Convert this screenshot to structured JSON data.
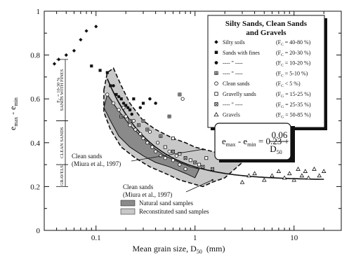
{
  "chart_data": {
    "type": "scatter",
    "x_scale": "log",
    "xlim": [
      0.03,
      30
    ],
    "ylim": [
      0,
      1
    ],
    "grid": false,
    "x_ticks": [
      {
        "value": 0.1,
        "label": "0.1"
      },
      {
        "value": 1,
        "label": "1"
      },
      {
        "value": 10,
        "label": "10"
      }
    ],
    "y_ticks": [
      {
        "value": 0,
        "label": "0"
      },
      {
        "value": 0.2,
        "label": "0.2"
      },
      {
        "value": 0.4,
        "label": "0.4"
      },
      {
        "value": 0.6,
        "label": "0.6"
      },
      {
        "value": 0.8,
        "label": "0.8"
      },
      {
        "value": 1,
        "label": "1"
      }
    ],
    "xlabel": "Mean grain size, D",
    "xlabel_sub": "50",
    "xlabel_unit": "(mm)",
    "ylabel": "e",
    "ylabel_sub1": "max",
    "ylabel_mid": " - e",
    "ylabel_sub2": "min",
    "legend_placement": "top-right",
    "legend_title": [
      "Silty Sands, Clean Sands",
      "and Gravels"
    ],
    "series": [
      {
        "name": "Silty soils",
        "param": "(F",
        "param_sub": "C",
        "range": " = 40-80 %)",
        "marker": "diamond",
        "points": [
          [
            0.038,
            0.76
          ],
          [
            0.042,
            0.78
          ],
          [
            0.05,
            0.8
          ],
          [
            0.06,
            0.82
          ],
          [
            0.07,
            0.87
          ],
          [
            0.08,
            0.91
          ],
          [
            0.1,
            0.93
          ]
        ]
      },
      {
        "name": "Sands with fines",
        "param": "(F",
        "param_sub": "C",
        "range": " = 20-30 %)",
        "marker": "square",
        "points": [
          [
            0.09,
            0.75
          ],
          [
            0.11,
            0.73
          ],
          [
            0.13,
            0.72
          ],
          [
            0.14,
            0.66
          ],
          [
            0.16,
            0.62
          ],
          [
            0.18,
            0.6
          ],
          [
            0.2,
            0.57
          ],
          [
            0.22,
            0.55
          ],
          [
            0.24,
            0.6
          ],
          [
            0.3,
            0.58
          ]
        ]
      },
      {
        "name": "---- \" ----",
        "param": "(F",
        "param_sub": "C",
        "range": " = 10-20 %)",
        "marker": "circle",
        "points": [
          [
            0.15,
            0.66
          ],
          [
            0.17,
            0.61
          ],
          [
            0.19,
            0.58
          ],
          [
            0.21,
            0.56
          ],
          [
            0.23,
            0.53
          ],
          [
            0.28,
            0.56
          ],
          [
            0.35,
            0.6
          ],
          [
            0.4,
            0.58
          ]
        ]
      },
      {
        "name": "---- \" ----",
        "param": "(F",
        "param_sub": "C",
        "range": " = 5-10 %)",
        "marker": "square-plus",
        "points": [
          [
            0.18,
            0.52
          ],
          [
            0.22,
            0.5
          ],
          [
            0.27,
            0.48
          ],
          [
            0.33,
            0.46
          ],
          [
            0.45,
            0.43
          ],
          [
            0.55,
            0.52
          ],
          [
            0.7,
            0.62
          ],
          [
            0.3,
            0.5
          ]
        ]
      },
      {
        "name": "Clean sands",
        "param": "(F",
        "param_sub": "C",
        "range": " < 5 %)",
        "marker": "circle-open",
        "points": [
          [
            0.13,
            0.62
          ],
          [
            0.15,
            0.58
          ],
          [
            0.17,
            0.55
          ],
          [
            0.2,
            0.52
          ],
          [
            0.22,
            0.48
          ],
          [
            0.25,
            0.46
          ],
          [
            0.28,
            0.44
          ],
          [
            0.3,
            0.42
          ],
          [
            0.33,
            0.4
          ],
          [
            0.37,
            0.38
          ],
          [
            0.4,
            0.36
          ],
          [
            0.45,
            0.34
          ],
          [
            0.5,
            0.33
          ],
          [
            0.6,
            0.32
          ],
          [
            0.7,
            0.3
          ],
          [
            0.8,
            0.28
          ],
          [
            0.35,
            0.45
          ],
          [
            0.24,
            0.5
          ],
          [
            0.19,
            0.56
          ],
          [
            0.42,
            0.4
          ],
          [
            0.55,
            0.36
          ],
          [
            0.65,
            0.34
          ],
          [
            0.75,
            0.6
          ]
        ]
      },
      {
        "name": "Gravelly sands",
        "param": "(F",
        "param_sub": "G",
        "range": " = 15-25 %)",
        "marker": "square-open",
        "points": [
          [
            0.5,
            0.38
          ],
          [
            0.7,
            0.35
          ],
          [
            0.9,
            0.32
          ],
          [
            1.1,
            0.3
          ],
          [
            1.3,
            0.33
          ],
          [
            0.6,
            0.42
          ]
        ]
      },
      {
        "name": "---- \" ----",
        "param": "(F",
        "param_sub": "G",
        "range": " = 25-35 %)",
        "marker": "square-x",
        "points": [
          [
            0.6,
            0.36
          ],
          [
            0.8,
            0.33
          ],
          [
            1.0,
            0.31
          ],
          [
            1.2,
            0.29
          ],
          [
            1.5,
            0.28
          ]
        ]
      },
      {
        "name": "Gravels",
        "param": "(F",
        "param_sub": "G",
        "range": " = 50-85 %)",
        "marker": "triangle-open",
        "points": [
          [
            3,
            0.22
          ],
          [
            3.5,
            0.25
          ],
          [
            4,
            0.26
          ],
          [
            5,
            0.23
          ],
          [
            6,
            0.25
          ],
          [
            7,
            0.27
          ],
          [
            8,
            0.24
          ],
          [
            9,
            0.26
          ],
          [
            10,
            0.23
          ],
          [
            11,
            0.28
          ],
          [
            12,
            0.25
          ],
          [
            13,
            0.27
          ],
          [
            14,
            0.24
          ],
          [
            16,
            0.28
          ],
          [
            18,
            0.25
          ],
          [
            20,
            0.27
          ]
        ]
      }
    ],
    "fit_curve": {
      "lhs": "e",
      "lhs_sub1": "max",
      "lhs_mid": " - e",
      "lhs_sub2": "min",
      "rhs": " = 0.23 + ",
      "numerator": "0.06",
      "denominator": "D",
      "denominator_sub": "50",
      "a": 0.23,
      "b": 0.06,
      "x_range": [
        0.13,
        20
      ]
    },
    "regions": [
      {
        "name": "Natural sand samples",
        "color": "#8a8a8a",
        "boundary": [
          [
            0.13,
            0.62
          ],
          [
            0.16,
            0.56
          ],
          [
            0.22,
            0.48
          ],
          [
            0.3,
            0.42
          ],
          [
            0.4,
            0.37
          ],
          [
            0.5,
            0.34
          ],
          [
            0.7,
            0.31
          ],
          [
            0.9,
            0.29
          ],
          [
            1.1,
            0.28
          ],
          [
            1.0,
            0.24
          ],
          [
            0.8,
            0.26
          ],
          [
            0.55,
            0.29
          ],
          [
            0.4,
            0.31
          ],
          [
            0.3,
            0.34
          ],
          [
            0.22,
            0.38
          ],
          [
            0.17,
            0.43
          ],
          [
            0.14,
            0.5
          ],
          [
            0.12,
            0.56
          ]
        ]
      },
      {
        "name": "Reconstituted sand samples",
        "color": "#c8c8c8",
        "boundary": [
          [
            0.12,
            0.64
          ],
          [
            0.13,
            0.72
          ],
          [
            0.15,
            0.74
          ],
          [
            0.18,
            0.66
          ],
          [
            0.22,
            0.58
          ],
          [
            0.3,
            0.5
          ],
          [
            0.4,
            0.46
          ],
          [
            0.6,
            0.42
          ],
          [
            0.8,
            0.4
          ],
          [
            1.0,
            0.38
          ],
          [
            1.5,
            0.36
          ],
          [
            2.5,
            0.33
          ],
          [
            3.0,
            0.31
          ],
          [
            2.0,
            0.24
          ],
          [
            1.5,
            0.22
          ],
          [
            1.2,
            0.2
          ],
          [
            1.0,
            0.21
          ],
          [
            0.7,
            0.23
          ],
          [
            0.5,
            0.26
          ],
          [
            0.35,
            0.29
          ],
          [
            0.25,
            0.33
          ],
          [
            0.18,
            0.38
          ],
          [
            0.14,
            0.46
          ],
          [
            0.12,
            0.54
          ]
        ]
      }
    ],
    "annotations": [
      {
        "lines": [
          "Clean sands",
          "(Miura et al., 1997)"
        ],
        "at": [
          0.1,
          0.3
        ],
        "points_to": [
          1.2,
          0.37
        ]
      },
      {
        "lines": [
          "Clean sands",
          "(Miura et al., 1997)"
        ],
        "at": [
          0.4,
          0.16
        ],
        "points_to": [
          1.5,
          0.23
        ]
      }
    ],
    "side_bands": [
      {
        "label": "SANDS WITH FINES",
        "range": [
          0.5,
          0.78
        ]
      },
      {
        "label": "CLEAN SANDS",
        "range": [
          0.3,
          0.5
        ]
      },
      {
        "label": "GRAVELS",
        "range": [
          0.2,
          0.3
        ]
      }
    ],
    "side_param": {
      "text": "F",
      "sub": "C",
      "rest": " = 10-30 %"
    }
  }
}
